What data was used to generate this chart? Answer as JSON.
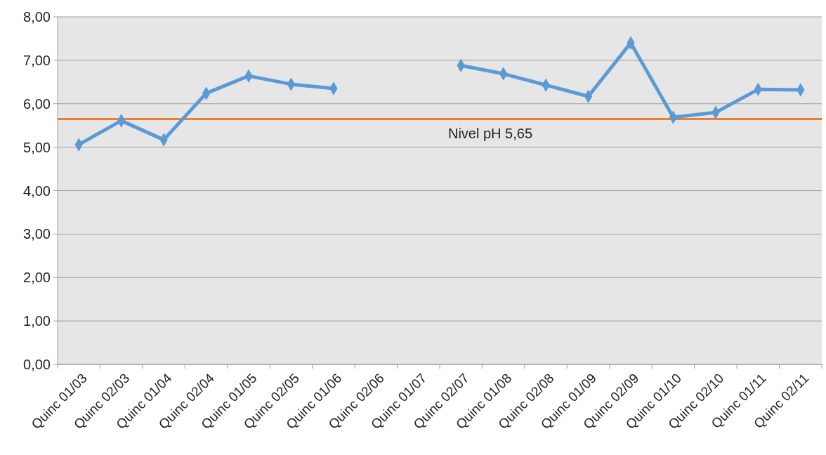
{
  "chart_data": {
    "type": "line",
    "categories": [
      "Quinc 01/03",
      "Quinc 02/03",
      "Quinc 01/04",
      "Quinc 02/04",
      "Quinc 01/05",
      "Quinc 02/05",
      "Quinc 01/06",
      "Quinc 02/06",
      "Quinc 01/07",
      "Quinc 02/07",
      "Quinc 01/08",
      "Quinc 02/08",
      "Quinc 01/09",
      "Quinc 02/09",
      "Quinc 01/10",
      "Quinc 02/10",
      "Quinc 01/11",
      "Quinc 02/11"
    ],
    "series": [
      {
        "color": "#5b9bd5",
        "values": [
          5.06,
          5.61,
          5.17,
          6.24,
          6.64,
          6.45,
          6.35,
          null,
          null,
          6.88,
          6.69,
          6.43,
          6.17,
          7.4,
          5.69,
          5.8,
          6.33,
          6.32
        ]
      }
    ],
    "ylim": [
      0,
      8
    ],
    "yticks": [
      {
        "value": 0,
        "label": "0,00"
      },
      {
        "value": 1,
        "label": "1,00"
      },
      {
        "value": 2,
        "label": "2,00"
      },
      {
        "value": 3,
        "label": "3,00"
      },
      {
        "value": 4,
        "label": "4,00"
      },
      {
        "value": 5,
        "label": "5,00"
      },
      {
        "value": 6,
        "label": "6,00"
      },
      {
        "value": 7,
        "label": "7,00"
      },
      {
        "value": 8,
        "label": "8,00"
      }
    ],
    "ref_lines": [
      {
        "axis": "y",
        "value": 5.65,
        "label": "Nivel pH 5,65",
        "color": "#ed7d31"
      }
    ],
    "grid": "y",
    "marker": "diamond",
    "line_style": "solid"
  }
}
